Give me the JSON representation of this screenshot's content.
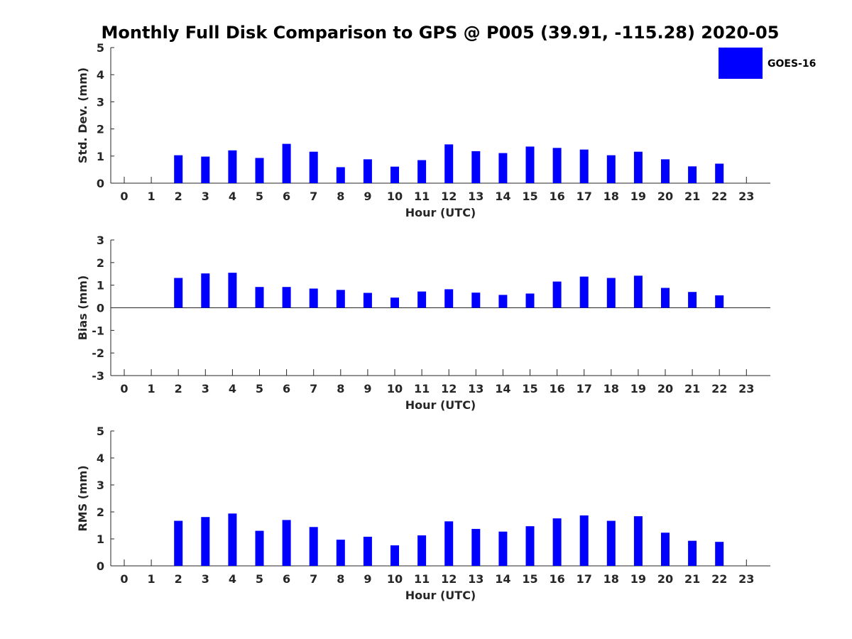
{
  "figure": {
    "title": "Monthly Full Disk Comparison to GPS @ P005 (39.91, -115.28) 2020-05"
  },
  "legend": {
    "label": "GOES-16",
    "color": "#0000ff",
    "position": "top-right"
  },
  "chart_data": [
    {
      "type": "bar",
      "title": "Monthly Full Disk Comparison to GPS @ P005 (39.91, -115.28) 2020-05",
      "xlabel": "Hour (UTC)",
      "ylabel": "Std. Dev. (mm)",
      "ylim": [
        0,
        5
      ],
      "yticks": [
        0,
        1,
        2,
        3,
        4,
        5
      ],
      "categories": [
        "0",
        "1",
        "2",
        "3",
        "4",
        "5",
        "6",
        "7",
        "8",
        "9",
        "10",
        "11",
        "12",
        "13",
        "14",
        "15",
        "16",
        "17",
        "18",
        "19",
        "20",
        "21",
        "22",
        "23"
      ],
      "series": [
        {
          "name": "GOES-16",
          "color": "#0000ff",
          "values": [
            null,
            null,
            1.03,
            0.98,
            1.21,
            0.93,
            1.45,
            1.16,
            0.59,
            0.88,
            0.61,
            0.85,
            1.43,
            1.18,
            1.11,
            1.35,
            1.3,
            1.24,
            1.03,
            1.16,
            0.88,
            0.62,
            0.72,
            null
          ]
        }
      ]
    },
    {
      "type": "bar",
      "xlabel": "Hour (UTC)",
      "ylabel": "Bias (mm)",
      "ylim": [
        -3,
        3
      ],
      "yticks": [
        -3,
        -2,
        -1,
        0,
        1,
        2,
        3
      ],
      "categories": [
        "0",
        "1",
        "2",
        "3",
        "4",
        "5",
        "6",
        "7",
        "8",
        "9",
        "10",
        "11",
        "12",
        "13",
        "14",
        "15",
        "16",
        "17",
        "18",
        "19",
        "20",
        "21",
        "22",
        "23"
      ],
      "series": [
        {
          "name": "GOES-16",
          "color": "#0000ff",
          "values": [
            null,
            null,
            1.32,
            1.52,
            1.55,
            0.92,
            0.92,
            0.85,
            0.79,
            0.66,
            0.45,
            0.72,
            0.82,
            0.67,
            0.57,
            0.63,
            1.16,
            1.38,
            1.32,
            1.42,
            0.88,
            0.7,
            0.55,
            null
          ]
        }
      ]
    },
    {
      "type": "bar",
      "xlabel": "Hour (UTC)",
      "ylabel": "RMS (mm)",
      "ylim": [
        0,
        5
      ],
      "yticks": [
        0,
        1,
        2,
        3,
        4,
        5
      ],
      "categories": [
        "0",
        "1",
        "2",
        "3",
        "4",
        "5",
        "6",
        "7",
        "8",
        "9",
        "10",
        "11",
        "12",
        "13",
        "14",
        "15",
        "16",
        "17",
        "18",
        "19",
        "20",
        "21",
        "22",
        "23"
      ],
      "series": [
        {
          "name": "GOES-16",
          "color": "#0000ff",
          "values": [
            null,
            null,
            1.67,
            1.81,
            1.94,
            1.3,
            1.7,
            1.44,
            0.97,
            1.08,
            0.76,
            1.13,
            1.65,
            1.37,
            1.27,
            1.47,
            1.76,
            1.87,
            1.67,
            1.84,
            1.23,
            0.93,
            0.89,
            null
          ]
        }
      ]
    }
  ]
}
